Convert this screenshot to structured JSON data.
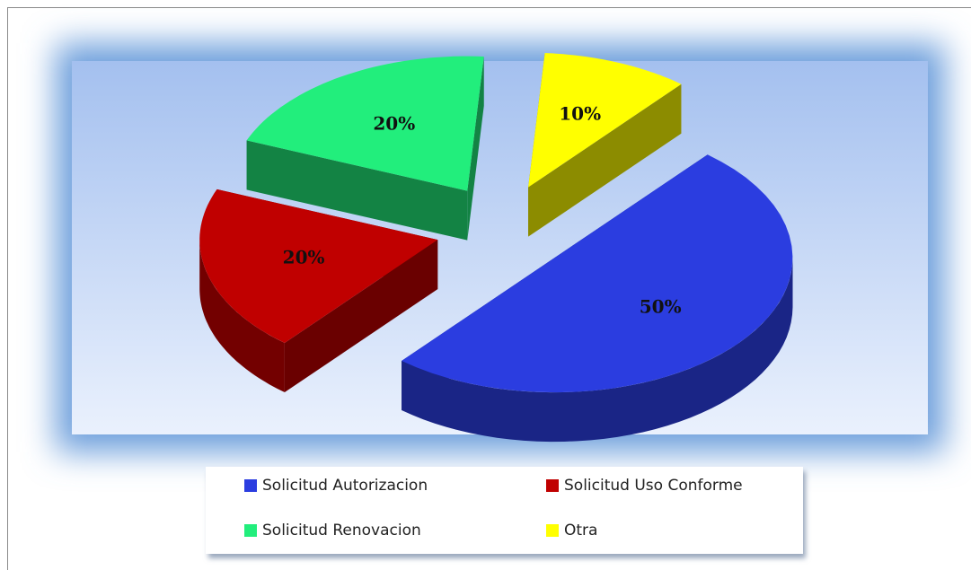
{
  "chart_data": {
    "type": "pie",
    "style": "3d-exploded",
    "categories": [
      "Solicitud Autorizacion",
      "Solicitud Uso Conforme",
      "Solicitud Renovacion",
      "Otra"
    ],
    "values": [
      50,
      20,
      20,
      10
    ],
    "value_labels": [
      "50%",
      "20%",
      "20%",
      "10%"
    ],
    "colors": [
      "#2b3de0",
      "#c00000",
      "#22ee7c",
      "#ffff00"
    ],
    "legend": "bottom"
  }
}
